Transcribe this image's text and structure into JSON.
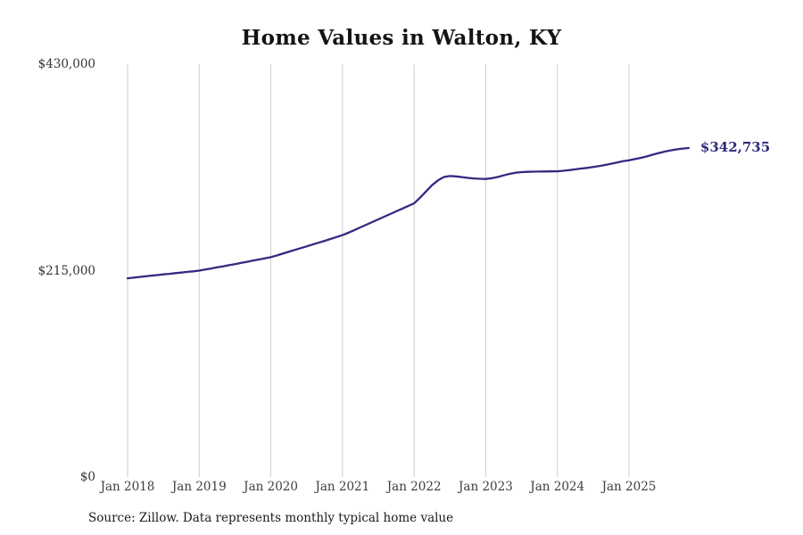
{
  "footer": {
    "source": "Source: Zillow. Data represents monthly typical home value"
  },
  "chart_data": {
    "type": "line",
    "title": "Home Values in Walton, KY",
    "series_name": "Monthly typical home value",
    "xlabel": "",
    "ylabel": "",
    "ylim": [
      0,
      430000
    ],
    "grid": "vertical-only",
    "legend": "none",
    "line_color": "#312a81",
    "grid_color": "#cccccc",
    "end_label": "$342,735",
    "y_ticks": [
      {
        "label": "$430,000",
        "value": 430000
      },
      {
        "label": "$215,000",
        "value": 215000
      },
      {
        "label": "$0",
        "value": 0
      }
    ],
    "x_tick_labels": [
      "Jan 2018",
      "Jan 2019",
      "Jan 2020",
      "Jan 2021",
      "Jan 2022",
      "Jan 2023",
      "Jan 2024",
      "Jan 2025"
    ],
    "months": [
      "2018-01",
      "2018-02",
      "2018-03",
      "2018-04",
      "2018-05",
      "2018-06",
      "2018-07",
      "2018-08",
      "2018-09",
      "2018-10",
      "2018-11",
      "2018-12",
      "2019-01",
      "2019-02",
      "2019-03",
      "2019-04",
      "2019-05",
      "2019-06",
      "2019-07",
      "2019-08",
      "2019-09",
      "2019-10",
      "2019-11",
      "2019-12",
      "2020-01",
      "2020-02",
      "2020-03",
      "2020-04",
      "2020-05",
      "2020-06",
      "2020-07",
      "2020-08",
      "2020-09",
      "2020-10",
      "2020-11",
      "2020-12",
      "2021-01",
      "2021-02",
      "2021-03",
      "2021-04",
      "2021-05",
      "2021-06",
      "2021-07",
      "2021-08",
      "2021-09",
      "2021-10",
      "2021-11",
      "2021-12",
      "2022-01",
      "2022-02",
      "2022-03",
      "2022-04",
      "2022-05",
      "2022-06",
      "2022-07",
      "2022-08",
      "2022-09",
      "2022-10",
      "2022-11",
      "2022-12",
      "2023-01",
      "2023-02",
      "2023-03",
      "2023-04",
      "2023-05",
      "2023-06",
      "2023-07",
      "2023-08",
      "2023-09",
      "2023-10",
      "2023-11",
      "2023-12",
      "2024-01",
      "2024-02",
      "2024-03",
      "2024-04",
      "2024-05",
      "2024-06",
      "2024-07",
      "2024-08",
      "2024-09",
      "2024-10",
      "2024-11",
      "2024-12",
      "2025-01",
      "2025-02",
      "2025-03",
      "2025-04",
      "2025-05",
      "2025-06",
      "2025-07",
      "2025-08",
      "2025-09",
      "2025-10",
      "2025-11"
    ],
    "values": [
      207000,
      207700,
      208400,
      209100,
      209800,
      210400,
      211100,
      211700,
      212400,
      213000,
      213700,
      214300,
      215000,
      216100,
      217200,
      218400,
      219500,
      220700,
      221800,
      223000,
      224200,
      225400,
      226600,
      227800,
      229000,
      230800,
      232700,
      234600,
      236500,
      238400,
      240300,
      242200,
      244100,
      246000,
      248000,
      250000,
      252000,
      254500,
      257200,
      260000,
      262800,
      265600,
      268400,
      271200,
      274000,
      276800,
      279500,
      282300,
      285000,
      291000,
      297500,
      304000,
      309000,
      312500,
      313500,
      313200,
      312400,
      311600,
      311000,
      310700,
      310500,
      311200,
      312500,
      314200,
      315800,
      317000,
      317600,
      317900,
      318100,
      318200,
      318300,
      318400,
      318500,
      319000,
      319700,
      320500,
      321300,
      322000,
      322900,
      323900,
      325100,
      326400,
      327700,
      329000,
      330000,
      331200,
      332500,
      334000,
      335800,
      337500,
      339000,
      340300,
      341300,
      342100,
      342735
    ]
  }
}
